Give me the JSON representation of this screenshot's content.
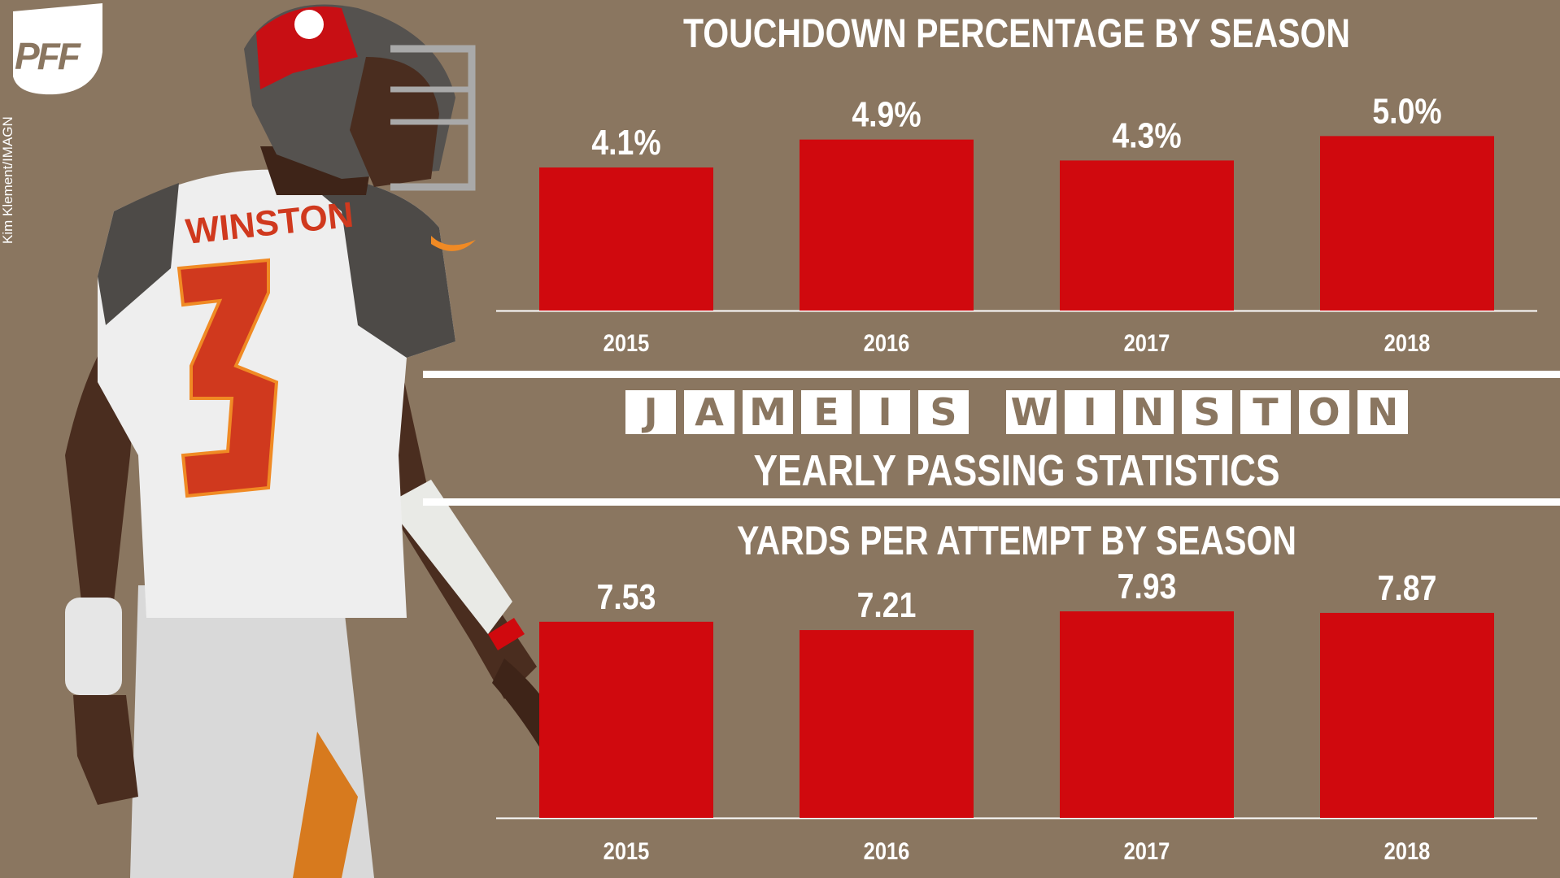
{
  "brand": {
    "logo_text": "PFF",
    "photo_credit": "Kim Klement/IMAGN"
  },
  "player": {
    "nameplate": "WINSTON",
    "number": "3"
  },
  "banner": {
    "name": "JAMEIS WINSTON",
    "subtitle": "YEARLY PASSING STATISTICS"
  },
  "colors": {
    "background": "#8a7660",
    "bar": "#d0090e",
    "text": "#ffffff"
  },
  "chart_data": [
    {
      "type": "bar",
      "title": "TOUCHDOWN PERCENTAGE BY SEASON",
      "categories": [
        "2015",
        "2016",
        "2017",
        "2018"
      ],
      "values": [
        4.1,
        4.9,
        4.3,
        5.0
      ],
      "value_labels": [
        "4.1%",
        "4.9%",
        "4.3%",
        "5.0%"
      ],
      "xlabel": "",
      "ylabel": "",
      "ylim": [
        0,
        6.15
      ],
      "grid": false,
      "legend": "none"
    },
    {
      "type": "bar",
      "title": "YARDS PER ATTEMPT BY SEASON",
      "categories": [
        "2015",
        "2016",
        "2017",
        "2018"
      ],
      "values": [
        7.53,
        7.21,
        7.93,
        7.87
      ],
      "value_labels": [
        "7.53",
        "7.21",
        "7.93",
        "7.87"
      ],
      "xlabel": "",
      "ylabel": "",
      "ylim": [
        0,
        7.93
      ],
      "grid": false,
      "legend": "none"
    }
  ]
}
